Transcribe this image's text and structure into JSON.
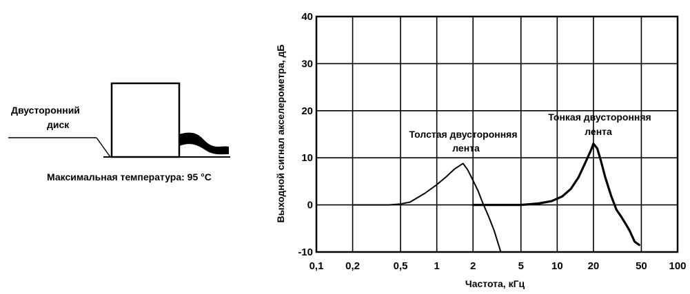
{
  "schematic": {
    "disc_label_line1": "Двусторонний",
    "disc_label_line2": "диск",
    "caption": "Максимальная температура: 95 °C"
  },
  "chart_data": {
    "type": "line",
    "title": "",
    "xlabel": "Частота, кГц",
    "ylabel": "Выходной сигнал акселерометра, дБ",
    "x_scale": "log",
    "xlim": [
      0.1,
      100
    ],
    "ylim": [
      -10,
      40
    ],
    "grid": true,
    "x_ticks": [
      {
        "value": 0.1,
        "label": "0,1"
      },
      {
        "value": 0.2,
        "label": "0,2"
      },
      {
        "value": 0.5,
        "label": "0,5"
      },
      {
        "value": 1,
        "label": "1"
      },
      {
        "value": 2,
        "label": "2"
      },
      {
        "value": 5,
        "label": "5"
      },
      {
        "value": 10,
        "label": "10"
      },
      {
        "value": 20,
        "label": "20"
      },
      {
        "value": 50,
        "label": "50"
      },
      {
        "value": 100,
        "label": "100"
      }
    ],
    "y_ticks": [
      {
        "value": -10,
        "label": "-10"
      },
      {
        "value": 0,
        "label": "0"
      },
      {
        "value": 10,
        "label": "10"
      },
      {
        "value": 20,
        "label": "20"
      },
      {
        "value": 30,
        "label": "30"
      },
      {
        "value": 40,
        "label": "40"
      }
    ],
    "series": [
      {
        "name": "Толстая двусторонняя лента",
        "stroke_width": 2,
        "points": [
          [
            0.2,
            0
          ],
          [
            0.4,
            0
          ],
          [
            0.5,
            0.2
          ],
          [
            0.6,
            0.6
          ],
          [
            0.8,
            2.5
          ],
          [
            1.0,
            4.3
          ],
          [
            1.2,
            6.0
          ],
          [
            1.4,
            7.6
          ],
          [
            1.65,
            8.8
          ],
          [
            1.8,
            7.5
          ],
          [
            2.0,
            5.2
          ],
          [
            2.2,
            3.0
          ],
          [
            2.4,
            0.5
          ],
          [
            2.7,
            -2.5
          ],
          [
            3.0,
            -5.5
          ],
          [
            3.4,
            -10
          ]
        ]
      },
      {
        "name": "Тонкая двусторонняя лента",
        "stroke_width": 3.2,
        "points": [
          [
            2.0,
            0
          ],
          [
            3.0,
            0
          ],
          [
            5.0,
            0
          ],
          [
            7.0,
            0.3
          ],
          [
            9.0,
            0.8
          ],
          [
            11.0,
            1.8
          ],
          [
            13.0,
            3.4
          ],
          [
            15.0,
            5.8
          ],
          [
            17.0,
            8.8
          ],
          [
            19.0,
            11.5
          ],
          [
            20.0,
            13.0
          ],
          [
            21.5,
            12.0
          ],
          [
            23.0,
            9.5
          ],
          [
            25.0,
            6.0
          ],
          [
            28.0,
            2.0
          ],
          [
            31.0,
            -1.0
          ],
          [
            34.0,
            -2.5
          ],
          [
            37.0,
            -4.0
          ],
          [
            40.0,
            -5.5
          ],
          [
            44.0,
            -7.8
          ],
          [
            48.0,
            -8.5
          ]
        ]
      }
    ],
    "annotations": [
      {
        "line1": "Толстая двусторонняя",
        "line2": "лента"
      },
      {
        "line1": "Тонкая двусторонняя",
        "line2": "лента"
      }
    ]
  }
}
